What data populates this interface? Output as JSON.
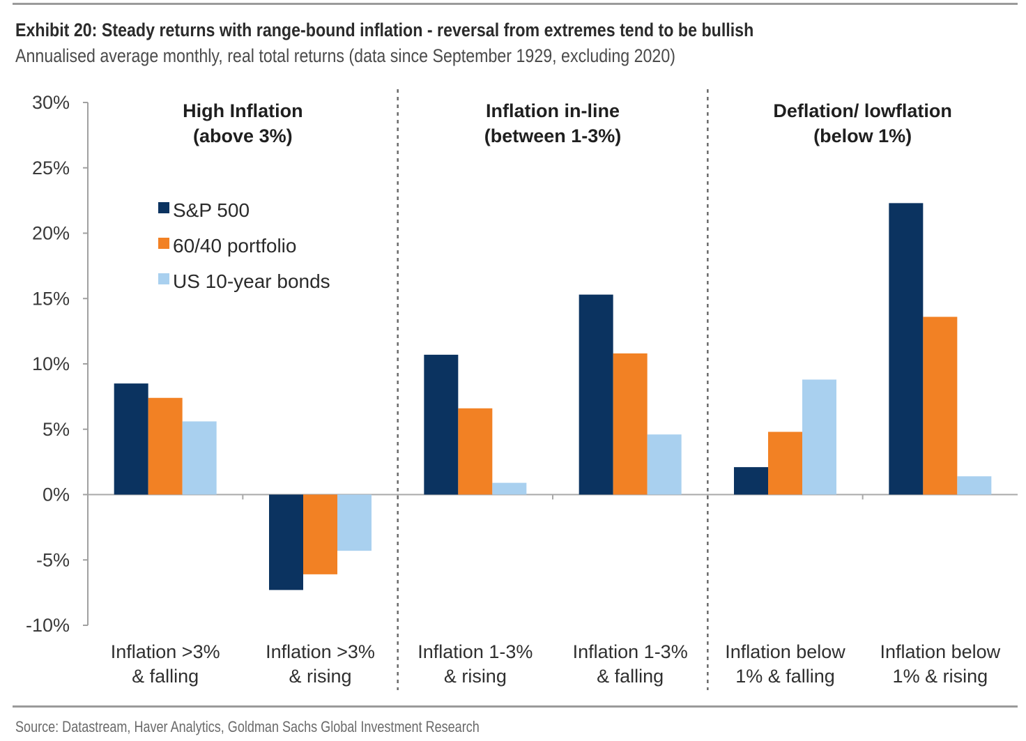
{
  "header": {
    "title": "Exhibit 20: Steady returns with range-bound inflation - reversal from extremes tend to be bullish",
    "subtitle": "Annualised average monthly, real total returns (data since September 1929, excluding 2020)"
  },
  "footer": {
    "source": "Source: Datastream, Haver Analytics, Goldman Sachs Global Investment Research"
  },
  "chart_data": {
    "type": "bar",
    "title": "Exhibit 20: Steady returns with range-bound inflation - reversal from extremes tend to be bullish",
    "subtitle": "Annualised average monthly, real total returns (data since September 1929, excluding 2020)",
    "xlabel": "",
    "ylabel": "",
    "ylim": [
      -10,
      30
    ],
    "yticks": [
      30,
      25,
      20,
      15,
      10,
      5,
      0,
      -5,
      -10
    ],
    "ytick_labels": [
      "30%",
      "25%",
      "20%",
      "15%",
      "10%",
      "5%",
      "0%",
      "-5%",
      "-10%"
    ],
    "grid": false,
    "legend_position": "top-left",
    "categories": [
      [
        "Inflation >3%",
        "& falling"
      ],
      [
        "Inflation >3%",
        "& rising"
      ],
      [
        "Inflation 1-3%",
        "& rising"
      ],
      [
        "Inflation 1-3%",
        "& falling"
      ],
      [
        "Inflation below",
        "1% & falling"
      ],
      [
        "Inflation below",
        "1% & rising"
      ]
    ],
    "groups": [
      {
        "title": [
          "High Inflation",
          "(above 3%)"
        ],
        "categories": [
          0,
          1
        ]
      },
      {
        "title": [
          "Inflation in-line",
          "(between 1-3%)"
        ],
        "categories": [
          2,
          3
        ]
      },
      {
        "title": [
          "Deflation/ lowflation",
          "(below 1%)"
        ],
        "categories": [
          4,
          5
        ]
      }
    ],
    "series": [
      {
        "name": "S&P 500",
        "color": "#0b3360",
        "values": [
          8.5,
          -7.3,
          10.7,
          15.3,
          2.1,
          22.3
        ]
      },
      {
        "name": "60/40 portfolio",
        "color": "#f28124",
        "values": [
          7.4,
          -6.1,
          6.6,
          10.8,
          4.8,
          13.6
        ]
      },
      {
        "name": "US 10-year bonds",
        "color": "#a9d0ef",
        "values": [
          5.6,
          -4.3,
          0.9,
          4.6,
          8.8,
          1.4
        ]
      }
    ],
    "units": "%"
  }
}
